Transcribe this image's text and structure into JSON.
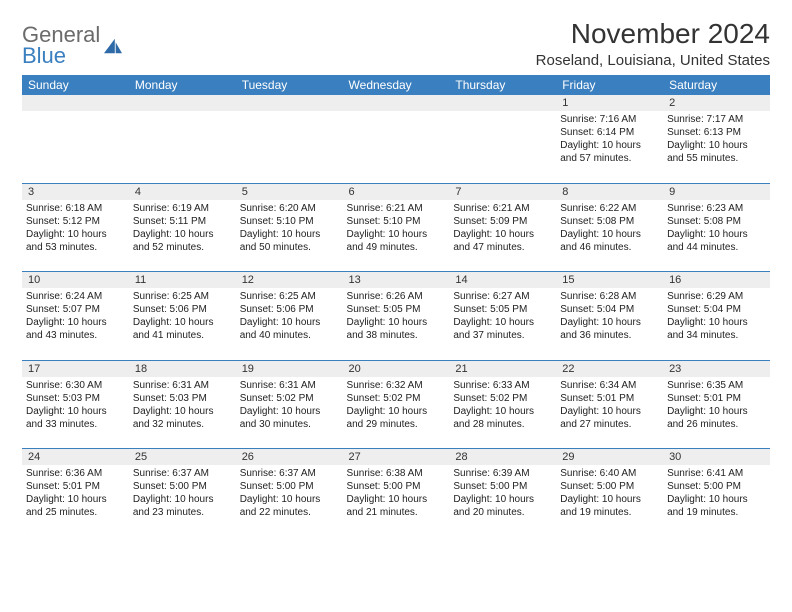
{
  "brand": {
    "general": "General",
    "blue": "Blue"
  },
  "title": "November 2024",
  "location": "Roseland, Louisiana, United States",
  "colors": {
    "header_bg": "#3a7fbf",
    "header_text": "#ffffff",
    "band_bg": "#eeeeee",
    "text": "#222222",
    "logo_gray": "#6b6b6b",
    "logo_blue": "#3a7fbf"
  },
  "daynames": [
    "Sunday",
    "Monday",
    "Tuesday",
    "Wednesday",
    "Thursday",
    "Friday",
    "Saturday"
  ],
  "weeks": [
    [
      null,
      null,
      null,
      null,
      null,
      {
        "n": "1",
        "sr": "Sunrise: 7:16 AM",
        "ss": "Sunset: 6:14 PM",
        "dl": "Daylight: 10 hours and 57 minutes."
      },
      {
        "n": "2",
        "sr": "Sunrise: 7:17 AM",
        "ss": "Sunset: 6:13 PM",
        "dl": "Daylight: 10 hours and 55 minutes."
      }
    ],
    [
      {
        "n": "3",
        "sr": "Sunrise: 6:18 AM",
        "ss": "Sunset: 5:12 PM",
        "dl": "Daylight: 10 hours and 53 minutes."
      },
      {
        "n": "4",
        "sr": "Sunrise: 6:19 AM",
        "ss": "Sunset: 5:11 PM",
        "dl": "Daylight: 10 hours and 52 minutes."
      },
      {
        "n": "5",
        "sr": "Sunrise: 6:20 AM",
        "ss": "Sunset: 5:10 PM",
        "dl": "Daylight: 10 hours and 50 minutes."
      },
      {
        "n": "6",
        "sr": "Sunrise: 6:21 AM",
        "ss": "Sunset: 5:10 PM",
        "dl": "Daylight: 10 hours and 49 minutes."
      },
      {
        "n": "7",
        "sr": "Sunrise: 6:21 AM",
        "ss": "Sunset: 5:09 PM",
        "dl": "Daylight: 10 hours and 47 minutes."
      },
      {
        "n": "8",
        "sr": "Sunrise: 6:22 AM",
        "ss": "Sunset: 5:08 PM",
        "dl": "Daylight: 10 hours and 46 minutes."
      },
      {
        "n": "9",
        "sr": "Sunrise: 6:23 AM",
        "ss": "Sunset: 5:08 PM",
        "dl": "Daylight: 10 hours and 44 minutes."
      }
    ],
    [
      {
        "n": "10",
        "sr": "Sunrise: 6:24 AM",
        "ss": "Sunset: 5:07 PM",
        "dl": "Daylight: 10 hours and 43 minutes."
      },
      {
        "n": "11",
        "sr": "Sunrise: 6:25 AM",
        "ss": "Sunset: 5:06 PM",
        "dl": "Daylight: 10 hours and 41 minutes."
      },
      {
        "n": "12",
        "sr": "Sunrise: 6:25 AM",
        "ss": "Sunset: 5:06 PM",
        "dl": "Daylight: 10 hours and 40 minutes."
      },
      {
        "n": "13",
        "sr": "Sunrise: 6:26 AM",
        "ss": "Sunset: 5:05 PM",
        "dl": "Daylight: 10 hours and 38 minutes."
      },
      {
        "n": "14",
        "sr": "Sunrise: 6:27 AM",
        "ss": "Sunset: 5:05 PM",
        "dl": "Daylight: 10 hours and 37 minutes."
      },
      {
        "n": "15",
        "sr": "Sunrise: 6:28 AM",
        "ss": "Sunset: 5:04 PM",
        "dl": "Daylight: 10 hours and 36 minutes."
      },
      {
        "n": "16",
        "sr": "Sunrise: 6:29 AM",
        "ss": "Sunset: 5:04 PM",
        "dl": "Daylight: 10 hours and 34 minutes."
      }
    ],
    [
      {
        "n": "17",
        "sr": "Sunrise: 6:30 AM",
        "ss": "Sunset: 5:03 PM",
        "dl": "Daylight: 10 hours and 33 minutes."
      },
      {
        "n": "18",
        "sr": "Sunrise: 6:31 AM",
        "ss": "Sunset: 5:03 PM",
        "dl": "Daylight: 10 hours and 32 minutes."
      },
      {
        "n": "19",
        "sr": "Sunrise: 6:31 AM",
        "ss": "Sunset: 5:02 PM",
        "dl": "Daylight: 10 hours and 30 minutes."
      },
      {
        "n": "20",
        "sr": "Sunrise: 6:32 AM",
        "ss": "Sunset: 5:02 PM",
        "dl": "Daylight: 10 hours and 29 minutes."
      },
      {
        "n": "21",
        "sr": "Sunrise: 6:33 AM",
        "ss": "Sunset: 5:02 PM",
        "dl": "Daylight: 10 hours and 28 minutes."
      },
      {
        "n": "22",
        "sr": "Sunrise: 6:34 AM",
        "ss": "Sunset: 5:01 PM",
        "dl": "Daylight: 10 hours and 27 minutes."
      },
      {
        "n": "23",
        "sr": "Sunrise: 6:35 AM",
        "ss": "Sunset: 5:01 PM",
        "dl": "Daylight: 10 hours and 26 minutes."
      }
    ],
    [
      {
        "n": "24",
        "sr": "Sunrise: 6:36 AM",
        "ss": "Sunset: 5:01 PM",
        "dl": "Daylight: 10 hours and 25 minutes."
      },
      {
        "n": "25",
        "sr": "Sunrise: 6:37 AM",
        "ss": "Sunset: 5:00 PM",
        "dl": "Daylight: 10 hours and 23 minutes."
      },
      {
        "n": "26",
        "sr": "Sunrise: 6:37 AM",
        "ss": "Sunset: 5:00 PM",
        "dl": "Daylight: 10 hours and 22 minutes."
      },
      {
        "n": "27",
        "sr": "Sunrise: 6:38 AM",
        "ss": "Sunset: 5:00 PM",
        "dl": "Daylight: 10 hours and 21 minutes."
      },
      {
        "n": "28",
        "sr": "Sunrise: 6:39 AM",
        "ss": "Sunset: 5:00 PM",
        "dl": "Daylight: 10 hours and 20 minutes."
      },
      {
        "n": "29",
        "sr": "Sunrise: 6:40 AM",
        "ss": "Sunset: 5:00 PM",
        "dl": "Daylight: 10 hours and 19 minutes."
      },
      {
        "n": "30",
        "sr": "Sunrise: 6:41 AM",
        "ss": "Sunset: 5:00 PM",
        "dl": "Daylight: 10 hours and 19 minutes."
      }
    ]
  ]
}
